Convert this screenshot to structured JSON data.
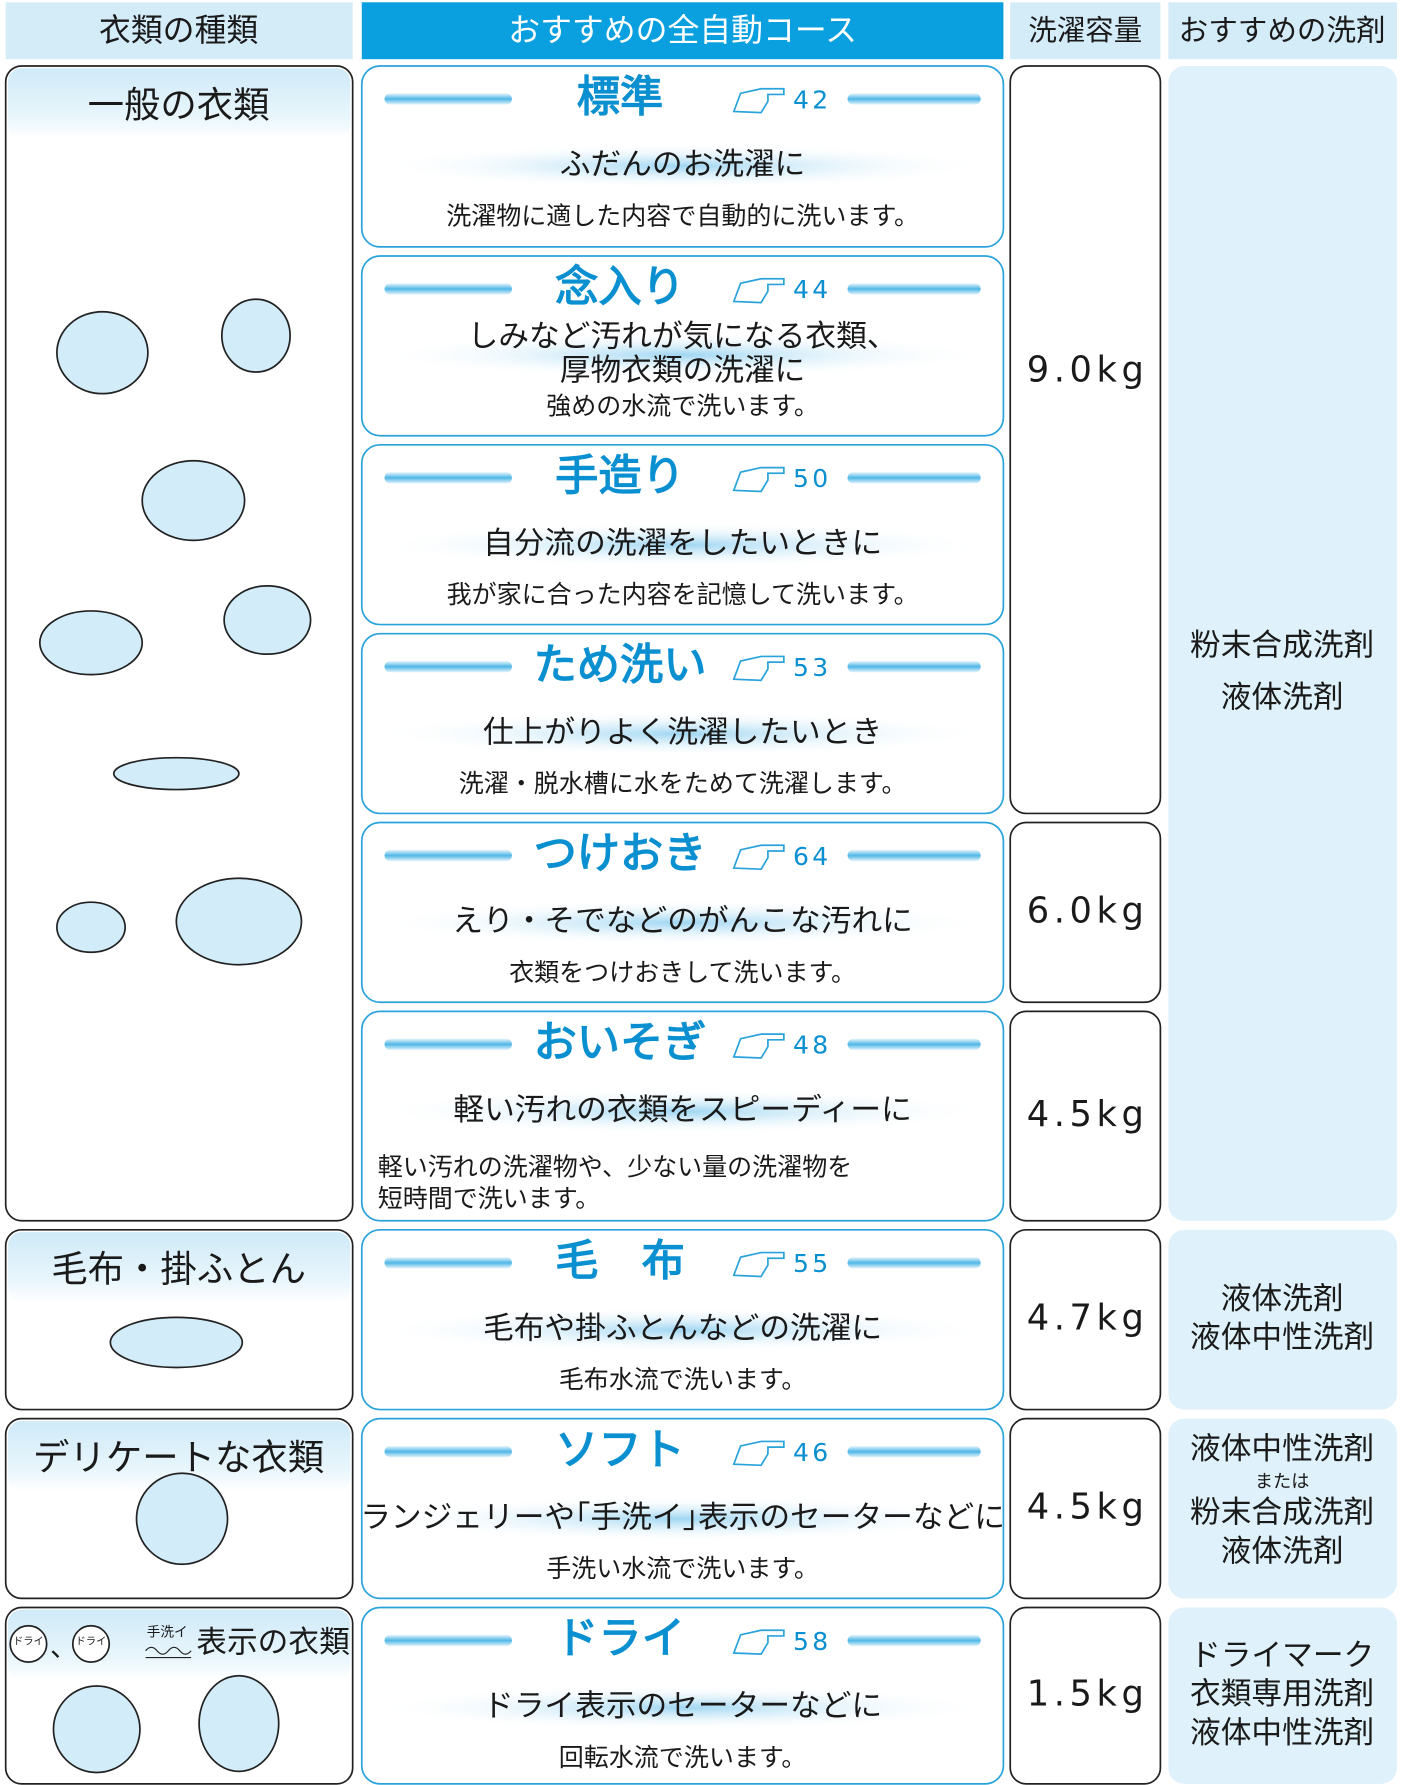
{
  "header": [
    "衣類の種類",
    "おすすめの全自動コース",
    "洗濯容量",
    "おすすめの洗剤"
  ],
  "clothing": [
    {
      "label": "一般の衣類"
    },
    {
      "label": "毛布・掛ふとん"
    },
    {
      "label": "デリケートな衣類"
    },
    {
      "icon_dry": "ドライ",
      "separator": "、",
      "icon_hand_wash": "手洗イ",
      "label": "表示の衣類"
    }
  ],
  "courses": [
    {
      "name": "標準",
      "page": "42",
      "subtitle": [
        "ふだんのお洗濯に"
      ],
      "description": [
        "洗濯物に適した内容で自動的に洗います。"
      ]
    },
    {
      "name": "念入り",
      "page": "44",
      "subtitle": [
        "しみなど汚れが気になる衣類、",
        "厚物衣類の洗濯に"
      ],
      "description": [
        "強めの水流で洗います。"
      ]
    },
    {
      "name": "手造り",
      "page": "50",
      "subtitle": [
        "自分流の洗濯をしたいときに"
      ],
      "description": [
        "我が家に合った内容を記憶して洗います。"
      ]
    },
    {
      "name": "ため洗い",
      "page": "53",
      "subtitle": [
        "仕上がりよく洗濯したいとき"
      ],
      "description": [
        "洗濯・脱水槽に水をためて洗濯します。"
      ]
    },
    {
      "name": "つけおき",
      "page": "64",
      "subtitle": [
        "えり・そでなどのがんこな汚れに"
      ],
      "description": [
        "衣類をつけおきして洗います。"
      ]
    },
    {
      "name": "おいそぎ",
      "page": "48",
      "subtitle": [
        "軽い汚れの衣類をスピーディーに"
      ],
      "description": [
        "軽い汚れの洗濯物や、少ない量の洗濯物を",
        "短時間で洗います。"
      ]
    },
    {
      "name": "毛　布",
      "page": "55",
      "subtitle": [
        "毛布や掛ふとんなどの洗濯に"
      ],
      "description": [
        "毛布水流で洗います。"
      ]
    },
    {
      "name": "ソフト",
      "page": "46",
      "subtitle": [
        "ランジェリーや｢手洗イ｣表示のセーターなどに"
      ],
      "description": [
        "手洗い水流で洗います。"
      ]
    },
    {
      "name": "ドライ",
      "page": "58",
      "subtitle": [
        "ドライ表示のセーターなどに"
      ],
      "description": [
        "回転水流で洗います。"
      ]
    }
  ],
  "capacity": [
    "9.0kg",
    "6.0kg",
    "4.5kg",
    "4.7kg",
    "4.5kg",
    "1.5kg"
  ],
  "detergent": [
    [
      "粉末合成洗剤",
      "液体洗剤"
    ],
    [
      "液体洗剤",
      "液体中性洗剤"
    ],
    [
      "液体中性洗剤",
      "または",
      "粉末合成洗剤",
      "液体洗剤"
    ],
    [
      "ドライマーク",
      "衣類専用洗剤",
      "液体中性洗剤"
    ]
  ]
}
